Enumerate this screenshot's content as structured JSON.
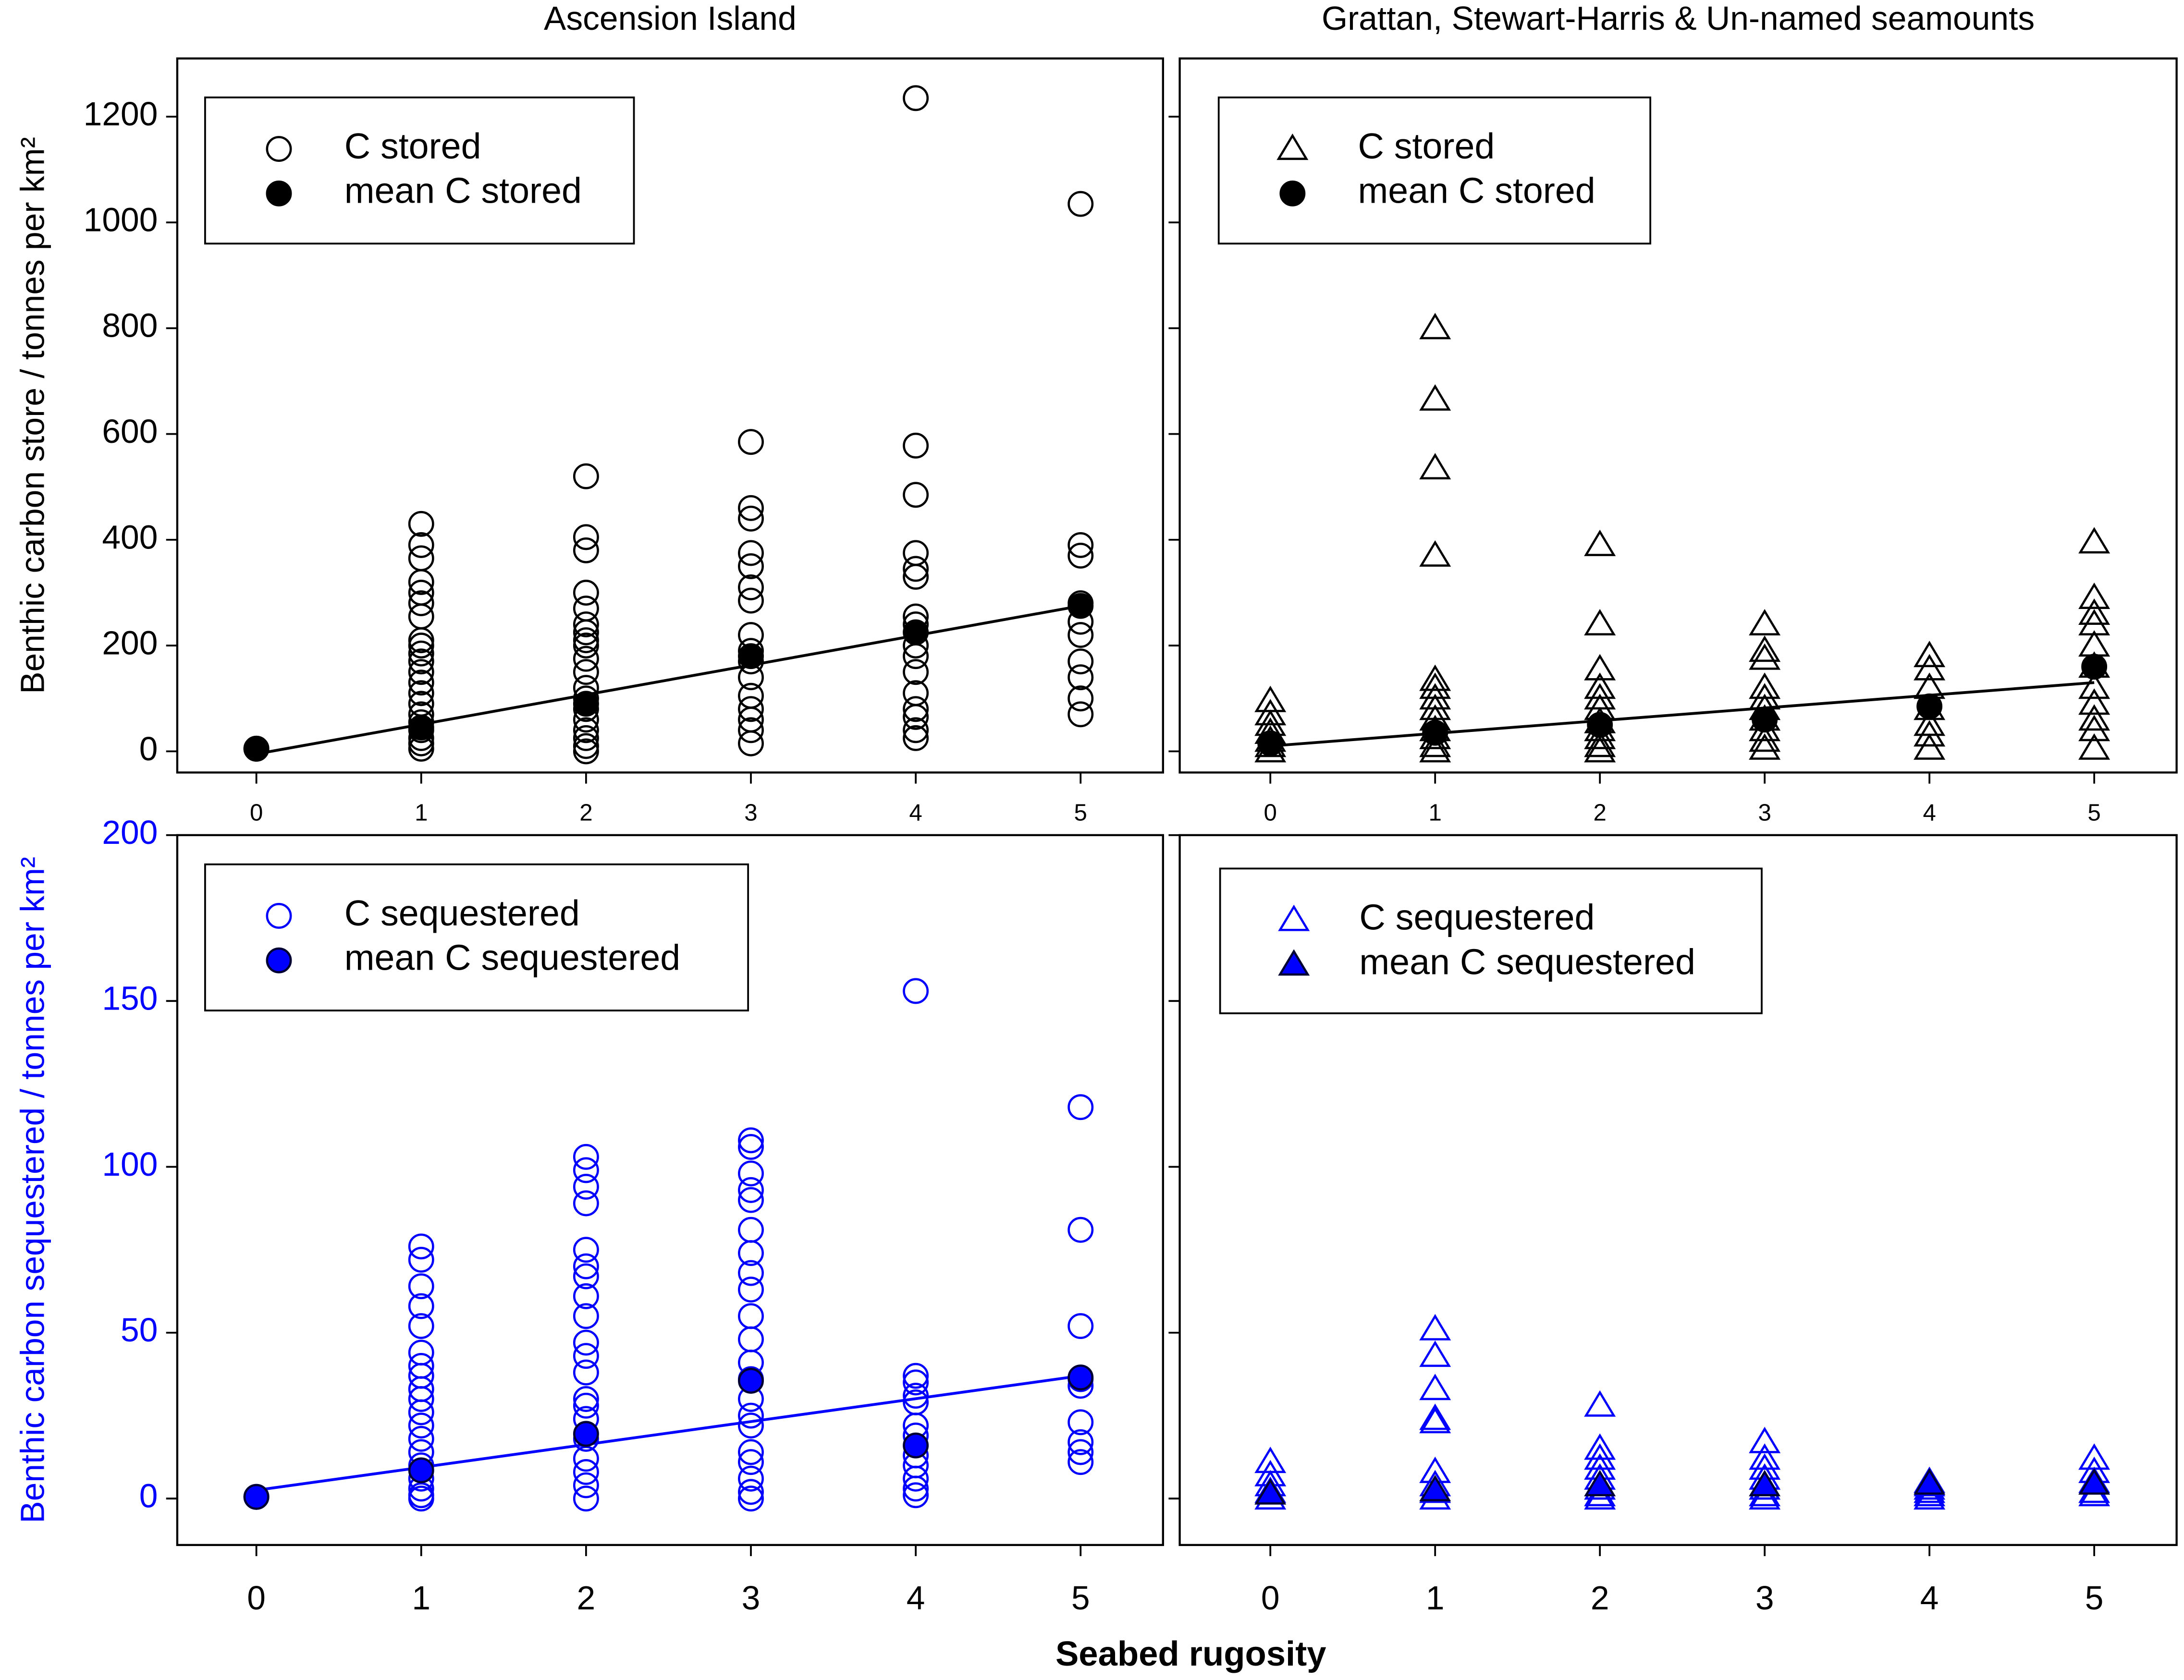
{
  "xlabel": "Seabed rugosity",
  "chart_data": [
    {
      "type": "scatter",
      "title": "Ascension Island",
      "ylabel": "Benthic carbon store / tonnes per km²",
      "xlim": [
        -0.48,
        5.5
      ],
      "ylim": [
        -40,
        1310
      ],
      "xticks": [
        0,
        1,
        2,
        3,
        4,
        5
      ],
      "yticks": [
        0,
        200,
        400,
        600,
        800,
        1000,
        1200
      ],
      "ytick_labels": true,
      "tick_color": "#000000",
      "series": [
        {
          "name": "C stored",
          "marker": "circle",
          "color": "#000000",
          "fill": "none",
          "x": [
            0,
            1,
            1,
            1,
            1,
            1,
            1,
            1,
            1,
            1,
            1,
            1,
            1,
            1,
            1,
            1,
            1,
            1,
            1,
            1,
            1,
            1,
            2,
            2,
            2,
            2,
            2,
            2,
            2,
            2,
            2,
            2,
            2,
            2,
            2,
            2,
            2,
            2,
            2,
            2,
            2,
            3,
            3,
            3,
            3,
            3,
            3,
            3,
            3,
            3,
            3,
            3,
            3,
            3,
            3,
            3,
            3,
            4,
            4,
            4,
            4,
            4,
            4,
            4,
            4,
            4,
            4,
            4,
            4,
            4,
            4,
            4,
            4,
            5,
            5,
            5,
            5,
            5,
            5,
            5,
            5,
            5,
            5
          ],
          "values": [
            5,
            430,
            390,
            365,
            320,
            300,
            280,
            255,
            210,
            200,
            185,
            170,
            150,
            130,
            110,
            90,
            70,
            55,
            40,
            25,
            15,
            5,
            520,
            405,
            380,
            300,
            270,
            240,
            225,
            210,
            200,
            175,
            150,
            120,
            100,
            80,
            60,
            40,
            25,
            10,
            0,
            585,
            460,
            440,
            375,
            350,
            310,
            285,
            220,
            190,
            170,
            140,
            105,
            80,
            60,
            40,
            15,
            1235,
            578,
            485,
            375,
            345,
            330,
            255,
            240,
            200,
            180,
            150,
            110,
            80,
            65,
            40,
            25,
            1035,
            390,
            370,
            280,
            245,
            220,
            170,
            140,
            100,
            70
          ]
        },
        {
          "name": "mean C stored",
          "marker": "circle",
          "color": "#000000",
          "fill": "#000000",
          "x": [
            0,
            1,
            2,
            3,
            4,
            5
          ],
          "values": [
            5,
            45,
            90,
            180,
            225,
            275
          ]
        }
      ],
      "fit": {
        "color": "#000000",
        "x": [
          0,
          5
        ],
        "values": [
          -5,
          275
        ]
      }
    },
    {
      "type": "scatter",
      "title": "Grattan, Stewart-Harris & Un-named seamounts",
      "xlim": [
        -0.55,
        5.5
      ],
      "ylim": [
        -40,
        1310
      ],
      "xticks": [
        0,
        1,
        2,
        3,
        4,
        5
      ],
      "yticks": [
        0,
        200,
        400,
        600,
        800,
        1000,
        1200
      ],
      "ytick_labels": false,
      "tick_color": "#000000",
      "series": [
        {
          "name": "C stored",
          "marker": "triangle",
          "color": "#000000",
          "fill": "none",
          "x": [
            0,
            0,
            0,
            0,
            0,
            0,
            0,
            1,
            1,
            1,
            1,
            1,
            1,
            1,
            1,
            1,
            1,
            1,
            1,
            1,
            2,
            2,
            2,
            2,
            2,
            2,
            2,
            2,
            2,
            2,
            2,
            3,
            3,
            3,
            3,
            3,
            3,
            3,
            3,
            3,
            3,
            4,
            4,
            4,
            4,
            4,
            4,
            4,
            5,
            5,
            5,
            5,
            5,
            5,
            5,
            5,
            5,
            5,
            5
          ],
          "values": [
            95,
            70,
            50,
            35,
            20,
            10,
            0,
            800,
            665,
            535,
            370,
            135,
            120,
            100,
            80,
            60,
            40,
            25,
            10,
            0,
            390,
            240,
            155,
            120,
            100,
            80,
            55,
            40,
            25,
            10,
            0,
            240,
            190,
            175,
            120,
            100,
            80,
            60,
            40,
            20,
            5,
            180,
            155,
            120,
            80,
            50,
            30,
            5,
            395,
            290,
            260,
            240,
            200,
            160,
            120,
            90,
            60,
            40,
            5
          ]
        },
        {
          "name": "mean C stored",
          "marker": "circle",
          "color": "#000000",
          "fill": "#000000",
          "x": [
            0,
            1,
            2,
            3,
            4,
            5
          ],
          "values": [
            15,
            35,
            50,
            60,
            85,
            160
          ]
        }
      ],
      "fit": {
        "color": "#000000",
        "x": [
          0,
          5
        ],
        "values": [
          10,
          130
        ]
      }
    },
    {
      "type": "scatter",
      "ylabel": "Benthic carbon sequestered / tonnes per km²",
      "xlim": [
        -0.48,
        5.5
      ],
      "ylim": [
        -14,
        200
      ],
      "xticks": [
        0,
        1,
        2,
        3,
        4,
        5
      ],
      "yticks": [
        0,
        50,
        100,
        150,
        200
      ],
      "ytick_labels": true,
      "tick_color": "#0000ff",
      "series": [
        {
          "name": "C sequestered",
          "marker": "circle",
          "color": "#0000ff",
          "fill": "none",
          "x": [
            0,
            1,
            1,
            1,
            1,
            1,
            1,
            1,
            1,
            1,
            1,
            1,
            1,
            1,
            1,
            1,
            1,
            1,
            1,
            1,
            2,
            2,
            2,
            2,
            2,
            2,
            2,
            2,
            2,
            2,
            2,
            2,
            2,
            2,
            2,
            2,
            2,
            2,
            2,
            2,
            3,
            3,
            3,
            3,
            3,
            3,
            3,
            3,
            3,
            3,
            3,
            3,
            3,
            3,
            3,
            3,
            3,
            3,
            3,
            3,
            3,
            4,
            4,
            4,
            4,
            4,
            4,
            4,
            4,
            4,
            4,
            4,
            4,
            5,
            5,
            5,
            5,
            5,
            5,
            5,
            5,
            5
          ],
          "values": [
            0.5,
            76,
            72,
            64,
            58,
            52,
            44,
            40,
            37,
            33,
            30,
            26,
            22,
            18,
            14,
            10,
            6,
            3,
            1,
            0,
            103,
            99,
            94,
            89,
            75,
            70,
            67,
            61,
            55,
            47,
            43,
            38,
            30,
            28,
            24,
            18,
            12,
            8,
            4,
            0,
            108,
            106,
            98,
            93,
            90,
            81,
            74,
            68,
            63,
            55,
            48,
            41,
            36,
            30,
            25,
            22,
            14,
            11,
            6,
            2,
            0,
            153,
            37,
            35,
            31,
            29,
            22,
            19,
            13,
            10,
            6,
            3,
            1,
            118,
            81,
            52,
            36,
            34,
            23,
            17,
            14,
            11
          ]
        },
        {
          "name": "mean C sequestered",
          "marker": "circle",
          "color": "#000033",
          "fill": "#0000ff",
          "x": [
            0,
            1,
            2,
            3,
            4,
            5
          ],
          "values": [
            0.5,
            8.5,
            19.5,
            35.5,
            16,
            36.5
          ]
        }
      ],
      "fit": {
        "color": "#0000ff",
        "x": [
          0,
          5
        ],
        "values": [
          2.5,
          37
        ]
      }
    },
    {
      "type": "scatter",
      "xlim": [
        -0.55,
        5.5
      ],
      "ylim": [
        -14,
        200
      ],
      "xticks": [
        0,
        1,
        2,
        3,
        4,
        5
      ],
      "yticks": [
        0,
        50,
        100,
        150,
        200
      ],
      "ytick_labels": false,
      "tick_color": "#0000ff",
      "series": [
        {
          "name": "C sequestered",
          "marker": "triangle",
          "color": "#0000ff",
          "fill": "none",
          "x": [
            0,
            0,
            0,
            0,
            0,
            1,
            1,
            1,
            1,
            1,
            1,
            1,
            1,
            1,
            2,
            2,
            2,
            2,
            2,
            2,
            2,
            2,
            3,
            3,
            3,
            3,
            3,
            3,
            3,
            4,
            4,
            4,
            4,
            4,
            4,
            5,
            5,
            5,
            5,
            5
          ],
          "values": [
            11,
            7,
            4,
            2,
            0,
            51,
            43,
            33,
            24,
            23,
            8,
            4,
            2,
            0,
            28,
            15,
            12,
            9,
            6,
            3,
            1,
            0,
            17,
            12,
            9,
            6,
            3,
            1,
            0,
            5,
            4,
            3,
            2,
            1,
            0,
            12,
            8,
            5,
            2,
            1
          ]
        },
        {
          "name": "mean C sequestered",
          "marker": "triangle",
          "color": "#000033",
          "fill": "#0000ff",
          "x": [
            0,
            1,
            2,
            3,
            4,
            5
          ],
          "values": [
            1.5,
            2.5,
            4,
            4,
            4.5,
            4.5
          ]
        }
      ]
    }
  ]
}
